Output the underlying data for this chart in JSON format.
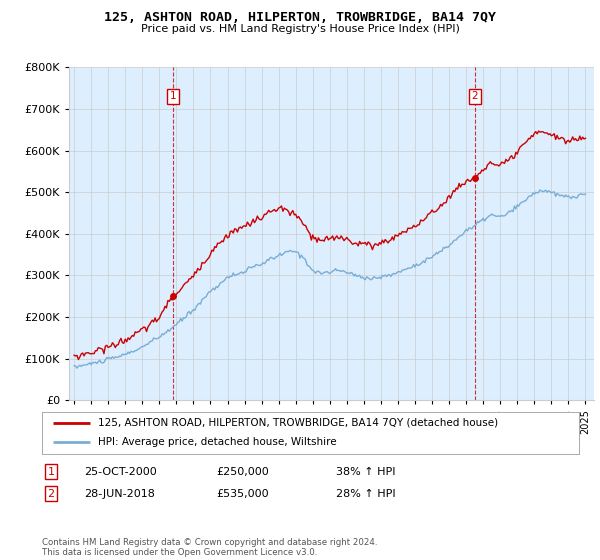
{
  "title": "125, ASHTON ROAD, HILPERTON, TROWBRIDGE, BA14 7QY",
  "subtitle": "Price paid vs. HM Land Registry's House Price Index (HPI)",
  "legend_line1": "125, ASHTON ROAD, HILPERTON, TROWBRIDGE, BA14 7QY (detached house)",
  "legend_line2": "HPI: Average price, detached house, Wiltshire",
  "transaction1_date": "25-OCT-2000",
  "transaction1_price": "£250,000",
  "transaction1_hpi": "38% ↑ HPI",
  "transaction1_year": 2000.8,
  "transaction1_value": 250000,
  "transaction2_date": "28-JUN-2018",
  "transaction2_price": "£535,000",
  "transaction2_hpi": "28% ↑ HPI",
  "transaction2_year": 2018.5,
  "transaction2_value": 535000,
  "price_color": "#cc0000",
  "hpi_color": "#7aadd4",
  "vline_color": "#cc0000",
  "bg_chart": "#ddeeff",
  "ylim": [
    0,
    800000
  ],
  "yticks": [
    0,
    100000,
    200000,
    300000,
    400000,
    500000,
    600000,
    700000,
    800000
  ],
  "footer": "Contains HM Land Registry data © Crown copyright and database right 2024.\nThis data is licensed under the Open Government Licence v3.0.",
  "background_color": "#ffffff",
  "grid_color": "#cccccc"
}
